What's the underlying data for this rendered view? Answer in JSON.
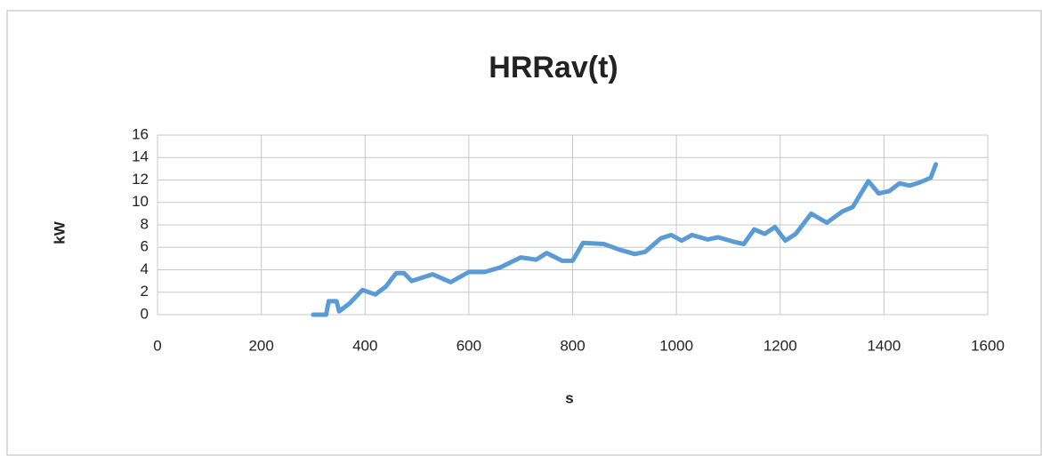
{
  "chart_data": {
    "type": "line",
    "title": "HRRav(t)",
    "x_label": "s",
    "y_label": "kW",
    "x": [
      300,
      325,
      330,
      345,
      350,
      370,
      395,
      420,
      440,
      460,
      475,
      490,
      530,
      565,
      600,
      630,
      660,
      700,
      730,
      750,
      780,
      800,
      820,
      860,
      890,
      920,
      940,
      970,
      990,
      1010,
      1030,
      1060,
      1080,
      1110,
      1130,
      1150,
      1170,
      1190,
      1210,
      1230,
      1260,
      1290,
      1320,
      1340,
      1370,
      1390,
      1410,
      1430,
      1450,
      1470,
      1490,
      1500
    ],
    "series": [
      {
        "name": "HRRav",
        "color": "#5b9bd5",
        "values": [
          0,
          0,
          1.2,
          1.2,
          0.3,
          1.0,
          2.2,
          1.8,
          2.5,
          3.7,
          3.7,
          3.0,
          3.6,
          2.9,
          3.8,
          3.8,
          4.2,
          5.1,
          4.9,
          5.5,
          4.8,
          4.8,
          6.4,
          6.3,
          5.8,
          5.4,
          5.6,
          6.8,
          7.1,
          6.6,
          7.1,
          6.7,
          6.9,
          6.5,
          6.3,
          7.6,
          7.2,
          7.8,
          6.6,
          7.2,
          9.0,
          8.2,
          9.2,
          9.6,
          11.9,
          10.8,
          11.0,
          11.7,
          11.5,
          11.8,
          12.2,
          13.4
        ]
      }
    ],
    "xlim": [
      0,
      1600
    ],
    "xticks": [
      0,
      200,
      400,
      600,
      800,
      1000,
      1200,
      1400,
      1600
    ],
    "ylim": [
      0,
      16
    ],
    "yticks": [
      0,
      2,
      4,
      6,
      8,
      10,
      12,
      14,
      16
    ],
    "grid": true
  }
}
